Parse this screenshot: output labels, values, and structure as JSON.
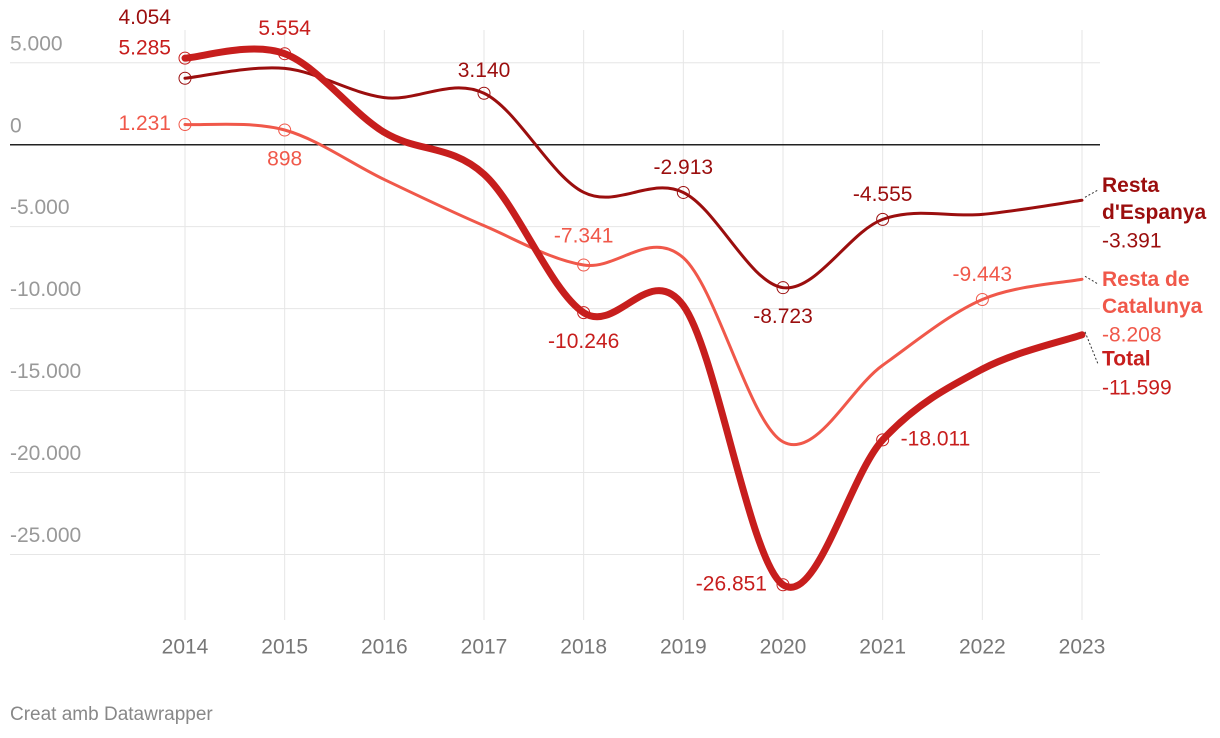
{
  "chart_data": {
    "type": "line",
    "categories": [
      "2014",
      "2015",
      "2016",
      "2017",
      "2018",
      "2019",
      "2020",
      "2021",
      "2022",
      "2023"
    ],
    "series": [
      {
        "name": "Resta d'Espanya",
        "color": "#9b0e0e",
        "values": [
          4054,
          4656,
          2875,
          3140,
          -2905,
          -2913,
          -8723,
          -4555,
          -4250,
          -3391
        ],
        "value_labels": [
          "4.054",
          null,
          null,
          "3.140",
          null,
          "-2.913",
          "-8.723",
          "-4.555",
          null,
          "-3.391"
        ]
      },
      {
        "name": "Resta de Catalunya",
        "color": "#f0584a",
        "values": [
          1231,
          898,
          -2125,
          -4940,
          -7341,
          -6900,
          -18128,
          -13456,
          -9443,
          -8208
        ],
        "value_labels": [
          "1.231",
          "898",
          null,
          null,
          "-7.341",
          null,
          null,
          null,
          "-9.443",
          "-8.208"
        ]
      },
      {
        "name": "Total",
        "color": "#c71e1d",
        "values": [
          5285,
          5554,
          750,
          -1800,
          -10246,
          -9813,
          -26851,
          -18011,
          -13693,
          -11599
        ],
        "value_labels": [
          "5.285",
          "5.554",
          null,
          null,
          "-10.246",
          null,
          "-26.851",
          "-18.011",
          null,
          "-11.599"
        ]
      }
    ],
    "ylim": [
      -29000,
      7000
    ],
    "yticks": [
      {
        "value": 5000,
        "label": "5.000"
      },
      0,
      {
        "value": -5000,
        "label": "-5.000"
      },
      {
        "value": -10000,
        "label": "-10.000"
      },
      {
        "value": -15000,
        "label": "-15.000"
      },
      {
        "value": -20000,
        "label": "-20.000"
      },
      {
        "value": -25000,
        "label": "-25.000"
      }
    ],
    "grid": true,
    "credit": "Creat amb Datawrapper"
  }
}
